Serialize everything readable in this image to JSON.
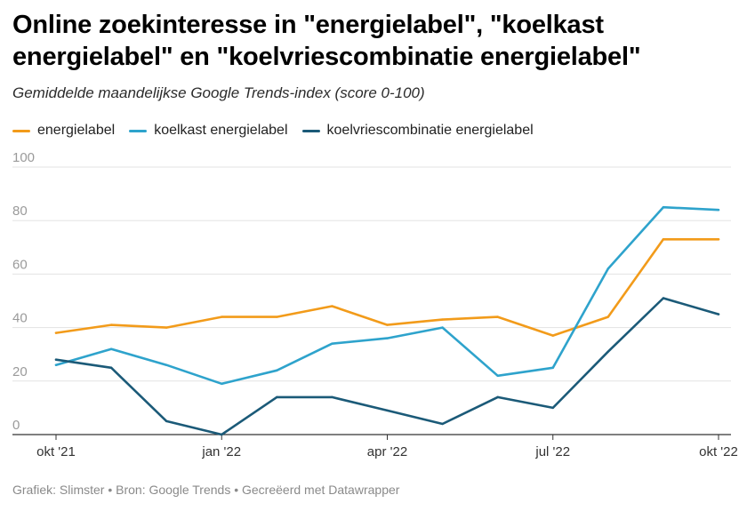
{
  "title": "Online zoekinteresse in \"energielabel\", \"koelkast energielabel\" en \"koelvriescombinatie energielabel\"",
  "subtitle": "Gemiddelde maandelijkse Google Trends-index (score 0-100)",
  "footer": "Grafiek: Slimster • Bron: Google Trends • Gecreëerd met Datawrapper",
  "chart_data": {
    "type": "line",
    "title": "Online zoekinteresse in \"energielabel\", \"koelkast energielabel\" en \"koelvriescombinatie energielabel\"",
    "subtitle": "Gemiddelde maandelijkse Google Trends-index (score 0-100)",
    "xlabel": "",
    "ylabel": "",
    "ylim": [
      0,
      100
    ],
    "yticks": [
      0,
      20,
      40,
      60,
      80,
      100
    ],
    "x": [
      "okt 2021",
      "nov 2021",
      "dec 2021",
      "jan 2022",
      "feb 2022",
      "mrt 2022",
      "apr 2022",
      "mei 2022",
      "jun 2022",
      "jul 2022",
      "aug 2022",
      "sep 2022",
      "okt 2022"
    ],
    "xtick_labels": [
      {
        "index": 0,
        "label": "okt '21"
      },
      {
        "index": 3,
        "label": "jan '22"
      },
      {
        "index": 6,
        "label": "apr '22"
      },
      {
        "index": 9,
        "label": "jul '22"
      },
      {
        "index": 12,
        "label": "okt '22"
      }
    ],
    "grid": true,
    "legend_position": "top-left",
    "series": [
      {
        "name": "energielabel",
        "color": "#f29b1a",
        "values": [
          38,
          41,
          40,
          44,
          44,
          48,
          41,
          43,
          44,
          37,
          44,
          73,
          73
        ]
      },
      {
        "name": "koelkast energielabel",
        "color": "#2ea3cc",
        "values": [
          26,
          32,
          26,
          19,
          24,
          34,
          36,
          40,
          22,
          25,
          62,
          85,
          84
        ]
      },
      {
        "name": "koelvriescombinatie energielabel",
        "color": "#1b5a78",
        "values": [
          28,
          25,
          5,
          0,
          14,
          14,
          9,
          4,
          14,
          10,
          31,
          51,
          45
        ]
      }
    ]
  }
}
